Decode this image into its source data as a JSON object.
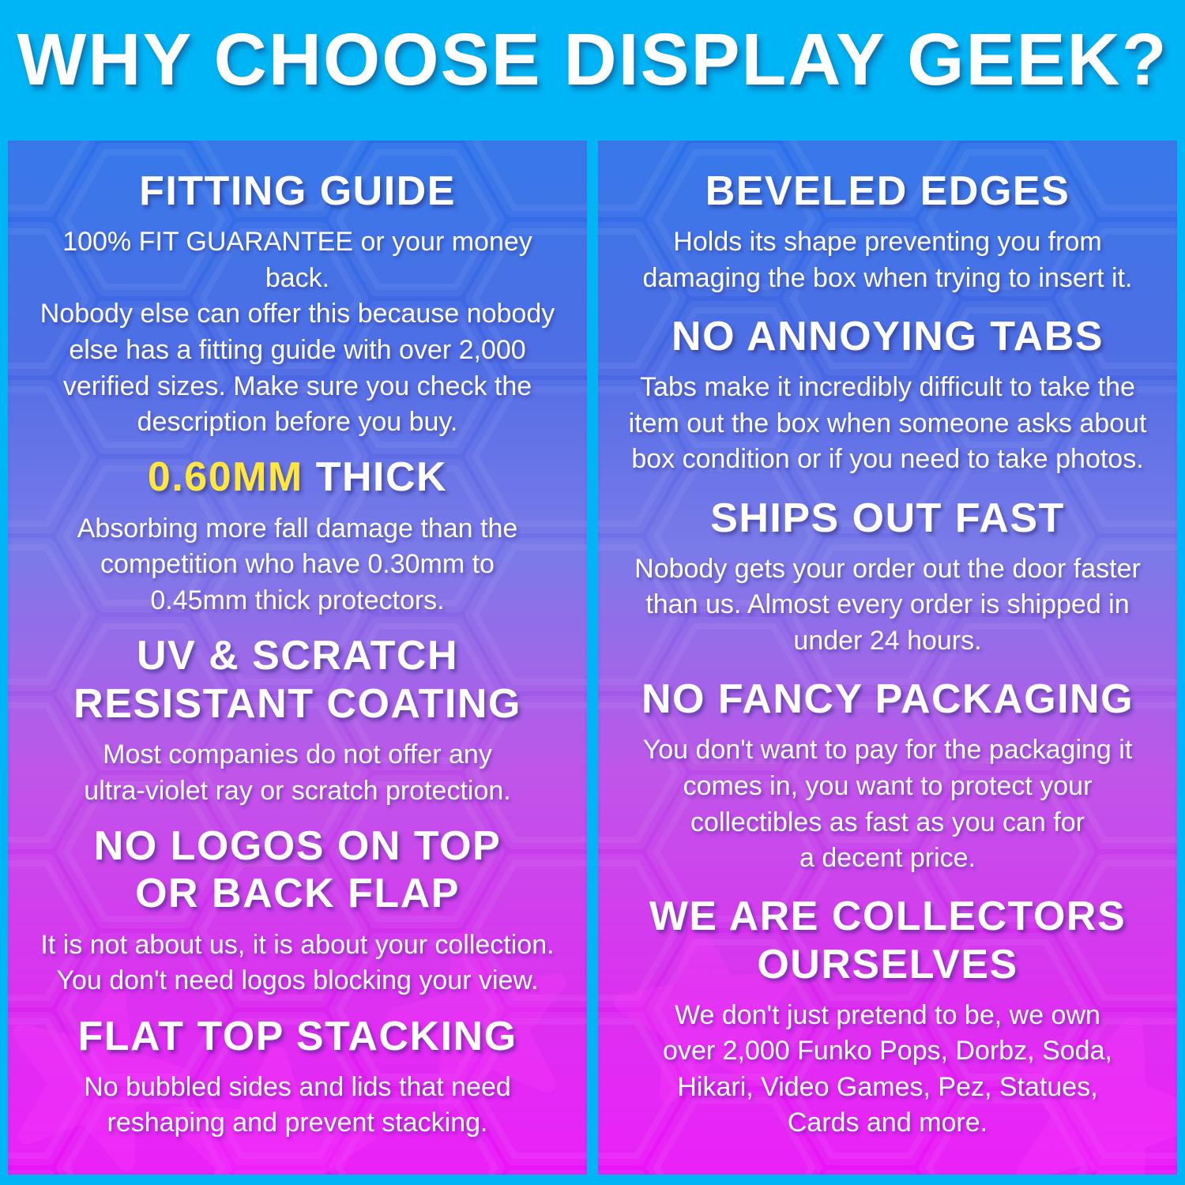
{
  "title": "WHY CHOOSE DISPLAY GEEK?",
  "colors": {
    "background_cyan": "#00b5f5",
    "panel_gradient": [
      "#2b71e9",
      "#4466e4",
      "#7472e8",
      "#bb4ce8",
      "#d926ef",
      "#ea14f8"
    ],
    "highlight_yellow": "#ffe73c",
    "text_white": "#ffffff",
    "star_pink": "#ff3dff"
  },
  "left_column": {
    "sections": [
      {
        "heading": "FITTING GUIDE",
        "body": "100% FIT GUARANTEE or your money back.\nNobody else can offer this because nobody\nelse has a fitting guide with over 2,000\nverified sizes. Make sure you check the\ndescription before you buy."
      },
      {
        "heading_parts": [
          {
            "text": "0.60MM",
            "highlight": true
          },
          {
            "text": " THICK",
            "highlight": false
          }
        ],
        "body": "Absorbing more fall damage than the\ncompetition who have 0.30mm to\n0.45mm thick protectors."
      },
      {
        "heading": "UV & SCRATCH\nRESISTANT COATING",
        "body": "Most companies do not offer any\nultra-violet ray or scratch protection."
      },
      {
        "heading": "NO LOGOS ON TOP\nOR BACK FLAP",
        "body": "It is not about us, it is about your collection.\nYou don't need logos blocking your view."
      },
      {
        "heading": "FLAT TOP STACKING",
        "body": "No bubbled sides and lids that need\nreshaping and prevent stacking."
      }
    ]
  },
  "right_column": {
    "sections": [
      {
        "heading": "BEVELED EDGES",
        "body": "Holds its shape preventing you from\ndamaging the box when trying to insert it."
      },
      {
        "heading": "NO ANNOYING TABS",
        "body": "Tabs make it incredibly difficult to take the\nitem out the box when someone asks about\nbox condition or if you need to take photos."
      },
      {
        "heading": "SHIPS OUT FAST",
        "body": "Nobody gets your order out the door faster\nthan us. Almost every order is shipped in\nunder 24 hours."
      },
      {
        "heading": "NO FANCY PACKAGING",
        "body": "You don't want to pay for the packaging it\ncomes in, you want to protect your\ncollectibles as fast as you can for\na decent price."
      },
      {
        "heading": "WE ARE COLLECTORS\nOURSELVES",
        "body": "We don't just pretend to be, we own\nover 2,000 Funko Pops, Dorbz, Soda,\nHikari, Video Games, Pez, Statues,\nCards and more."
      }
    ]
  }
}
